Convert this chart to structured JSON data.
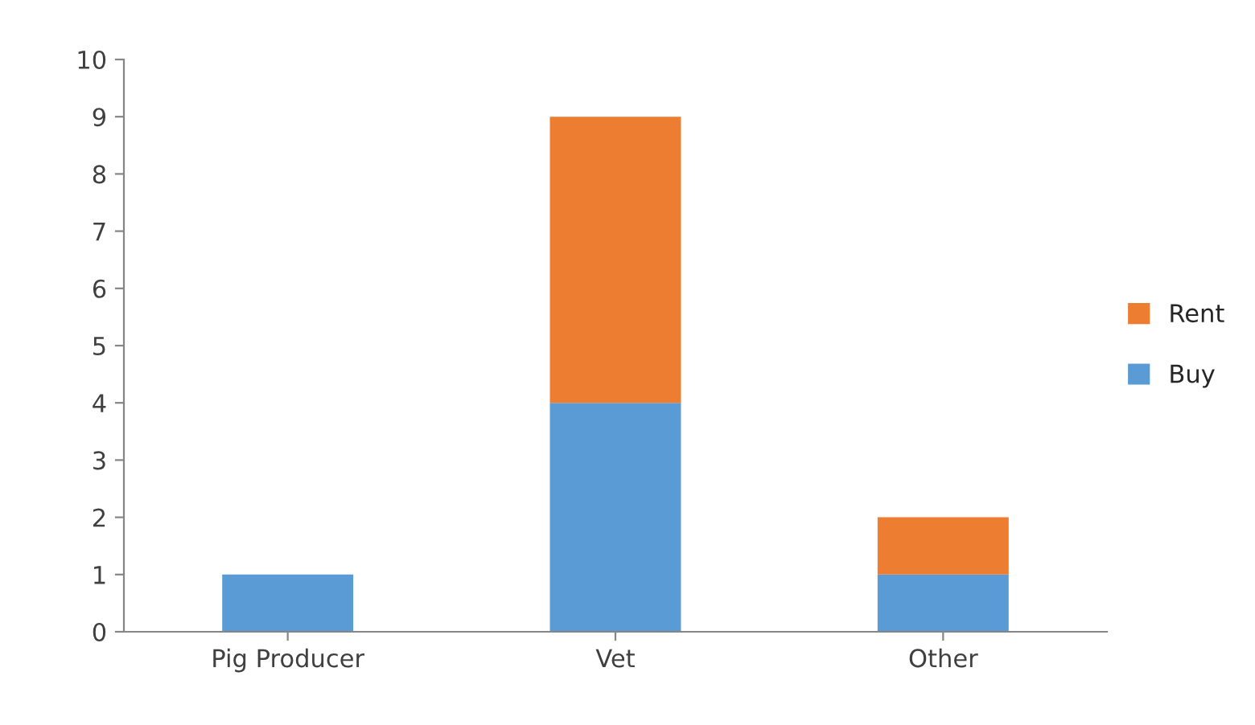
{
  "chart_data": {
    "type": "bar",
    "stacked": true,
    "categories": [
      "Pig Producer",
      "Vet",
      "Other"
    ],
    "series": [
      {
        "name": "Buy",
        "color": "#5b9bd5",
        "values": [
          1,
          4,
          1
        ]
      },
      {
        "name": "Rent",
        "color": "#ed7d31",
        "values": [
          null,
          5,
          1
        ]
      }
    ],
    "ylim": [
      0,
      10
    ],
    "yticks": [
      0,
      1,
      2,
      3,
      4,
      5,
      6,
      7,
      8,
      9,
      10
    ],
    "grid": false,
    "legend": "right"
  }
}
